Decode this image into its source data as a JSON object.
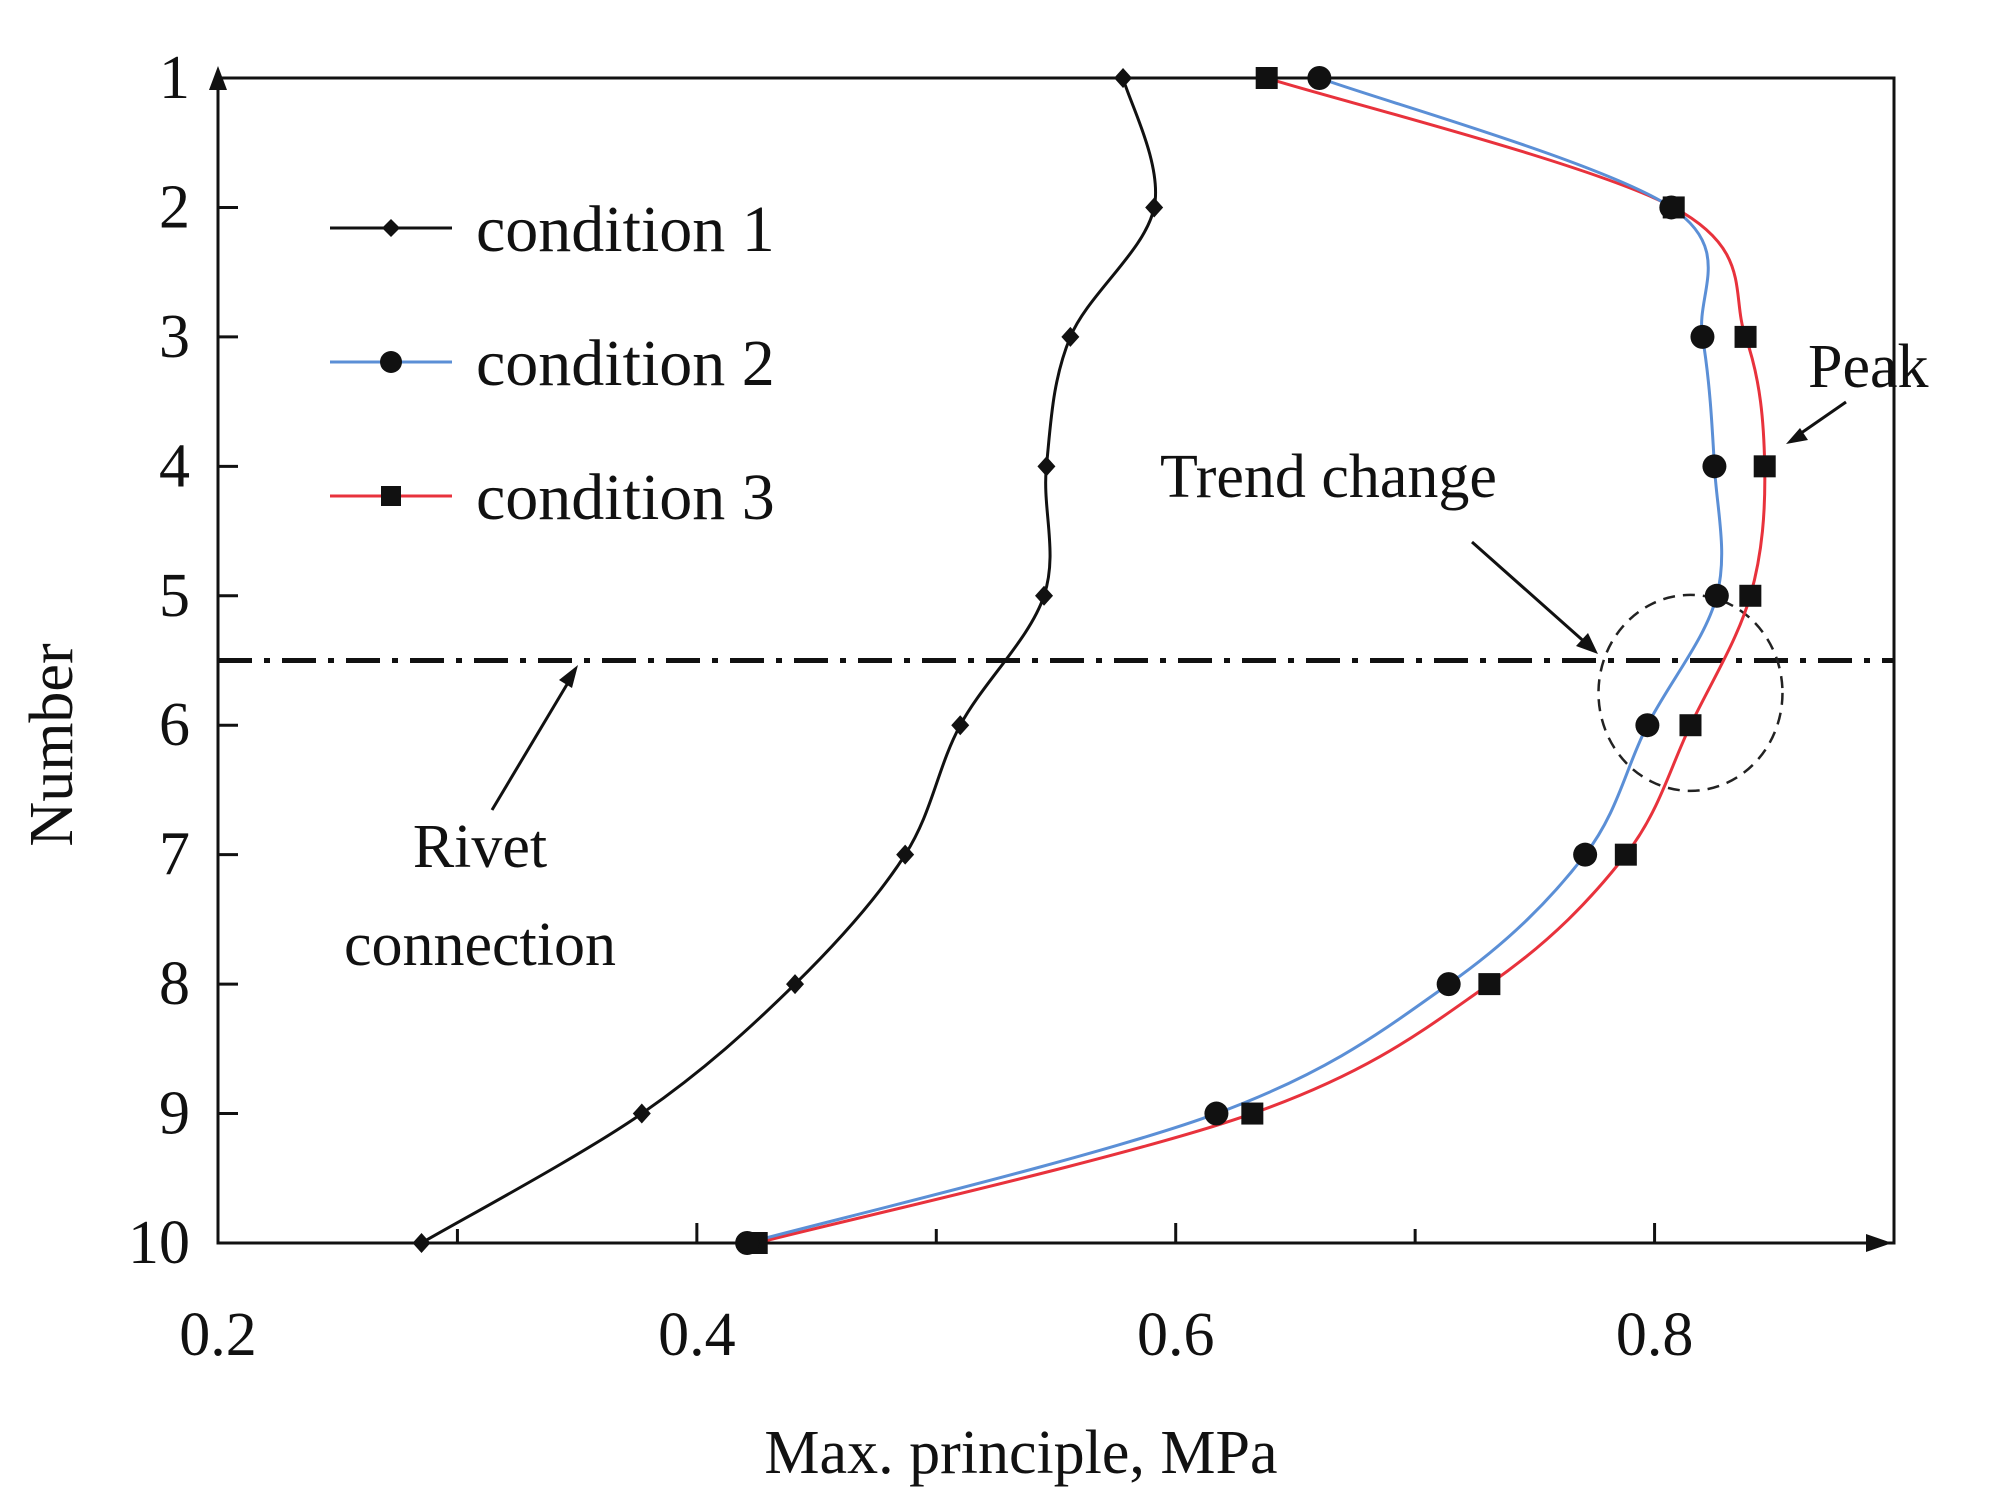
{
  "chart_data": {
    "type": "line",
    "title": "",
    "xlabel": "Max. principle, MPa",
    "ylabel": "Number",
    "xlim": [
      0.2,
      0.9
    ],
    "ylim": [
      1,
      10
    ],
    "y_inverted": true,
    "x_tick_labels": [
      "0.2",
      "0.4",
      "0.6",
      "0.8"
    ],
    "x_tick_values": [
      0.2,
      0.4,
      0.6,
      0.8
    ],
    "x_minor_ticks": [
      0.3,
      0.5,
      0.7
    ],
    "y_tick_labels": [
      "1",
      "2",
      "3",
      "4",
      "5",
      "6",
      "7",
      "8",
      "9",
      "10"
    ],
    "y_tick_values": [
      1,
      2,
      3,
      4,
      5,
      6,
      7,
      8,
      9,
      10
    ],
    "legend_position": "top-left",
    "series": [
      {
        "name": "condition 1",
        "color": "#111111",
        "marker": "diamond",
        "x": [
          0.578,
          0.591,
          0.556,
          0.546,
          0.545,
          0.51,
          0.487,
          0.441,
          0.377,
          0.285
        ],
        "y": [
          1,
          2,
          3,
          4,
          5,
          6,
          7,
          8,
          9,
          10
        ]
      },
      {
        "name": "condition 2",
        "color": "#5b8fd6",
        "marker": "circle",
        "x": [
          0.66,
          0.807,
          0.82,
          0.825,
          0.826,
          0.797,
          0.771,
          0.714,
          0.617,
          0.421
        ],
        "y": [
          1,
          2,
          3,
          4,
          5,
          6,
          7,
          8,
          9,
          10
        ]
      },
      {
        "name": "condition 3",
        "color": "#e8323c",
        "marker": "square",
        "x": [
          0.638,
          0.808,
          0.838,
          0.846,
          0.84,
          0.815,
          0.788,
          0.731,
          0.632,
          0.425
        ],
        "y": [
          1,
          2,
          3,
          4,
          5,
          6,
          7,
          8,
          9,
          10
        ]
      }
    ],
    "reference_line": {
      "y": 5.5,
      "style": "dash-dot"
    },
    "annotations": {
      "peak": "Peak",
      "trend_change": "Trend change",
      "rivet_line1": "Rivet",
      "rivet_line2": "connection"
    }
  }
}
